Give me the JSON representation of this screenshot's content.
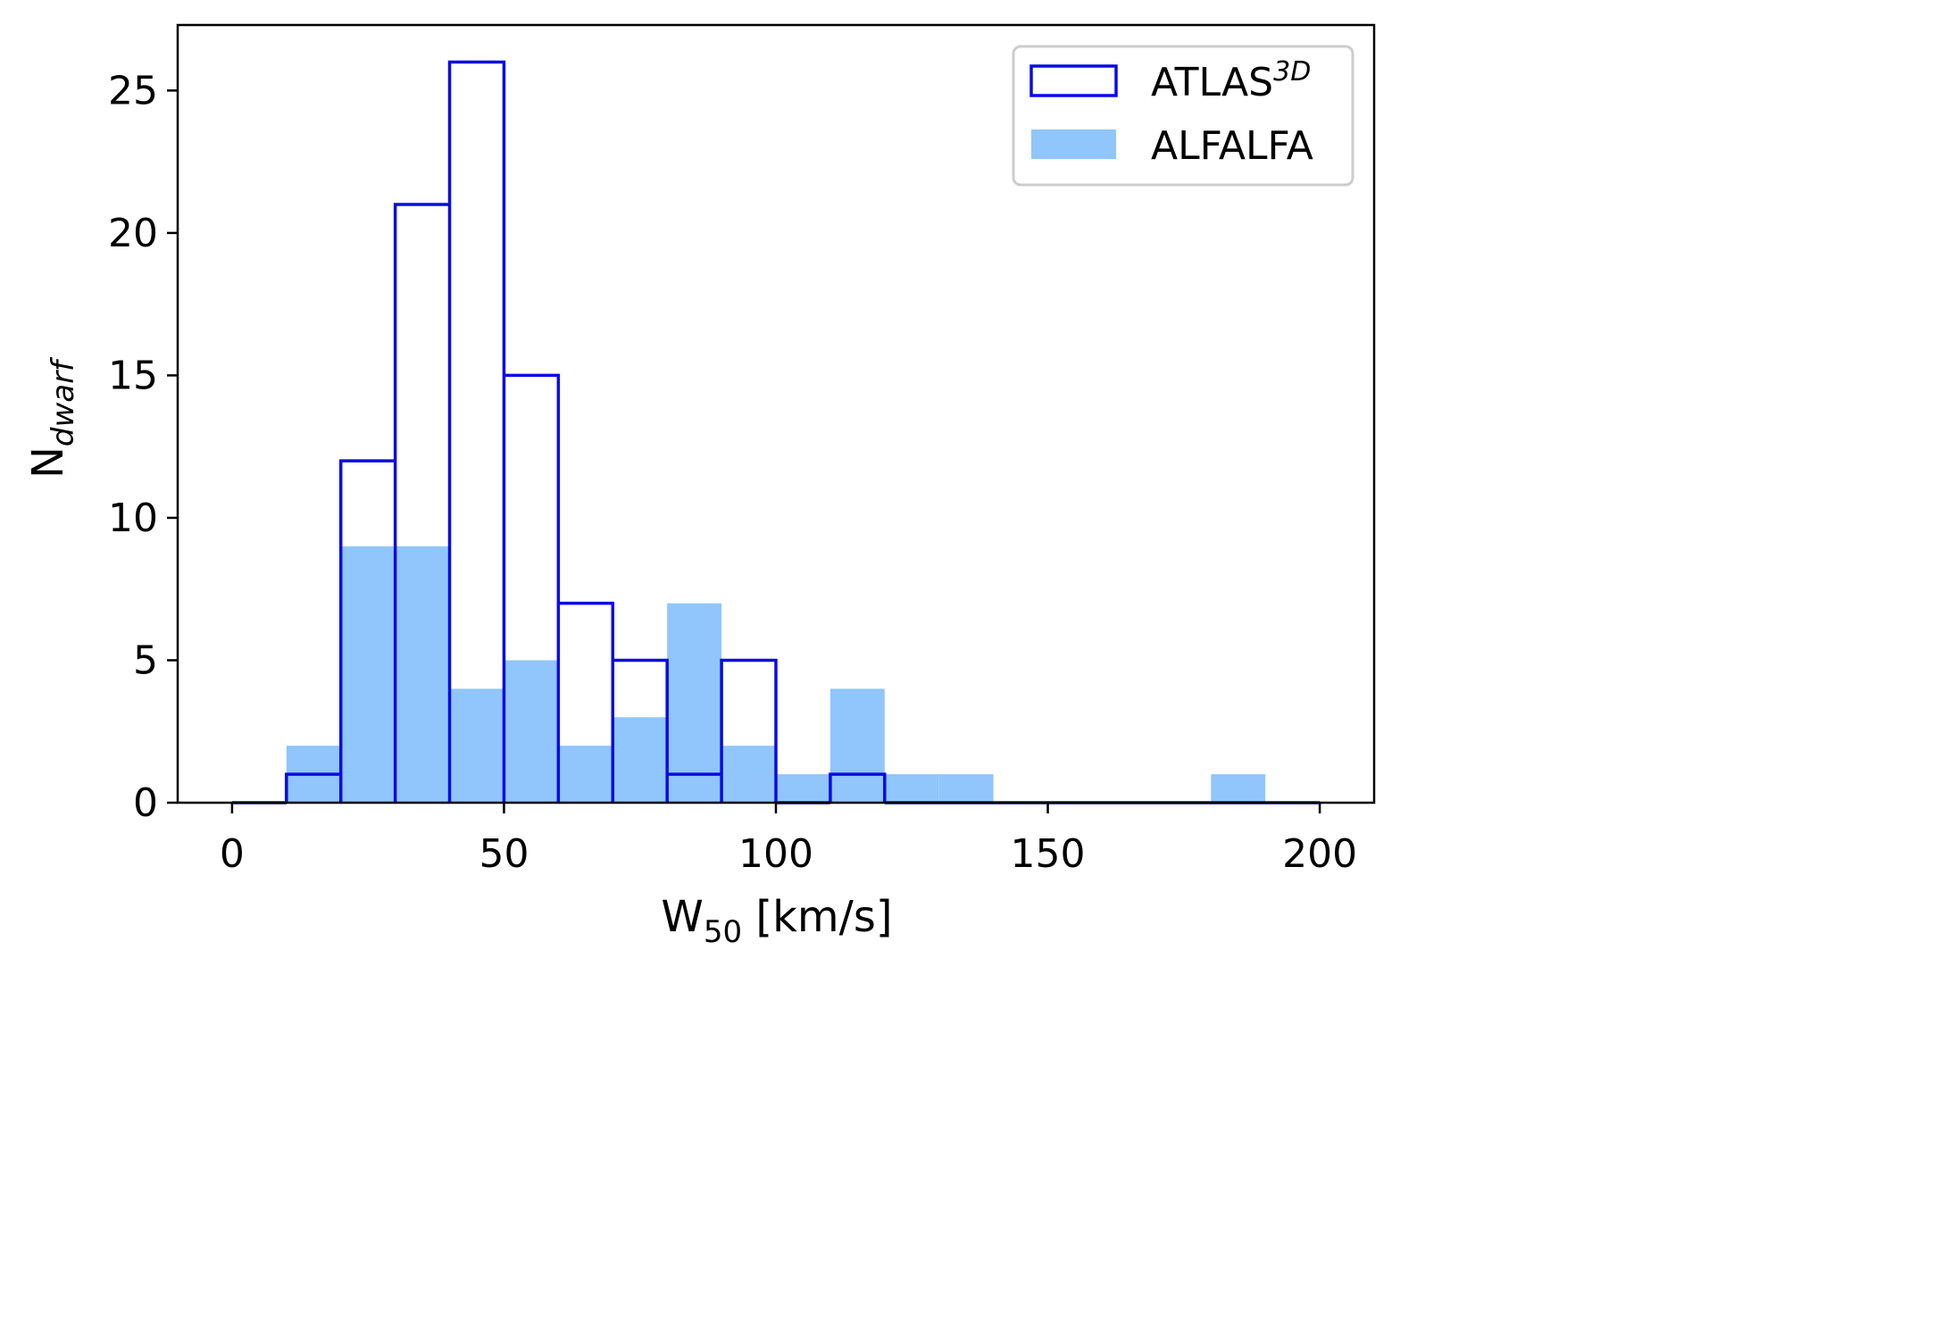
{
  "chart_data": {
    "type": "bar",
    "xlabel_main": "W",
    "xlabel_sub": "50",
    "xlabel_rest": " [km/s]",
    "ylabel_main": "N",
    "ylabel_sub": "dwarf",
    "xlim": [
      -10,
      210
    ],
    "ylim": [
      0,
      27.3
    ],
    "xticks": [
      0,
      50,
      100,
      150,
      200
    ],
    "yticks": [
      0,
      5,
      10,
      15,
      20,
      25
    ],
    "bin_edges": [
      0,
      10,
      20,
      30,
      40,
      50,
      60,
      70,
      80,
      90,
      100,
      110,
      120,
      130,
      140,
      150,
      160,
      170,
      180,
      190,
      200
    ],
    "legend_position": "top-right",
    "grid": false,
    "series": [
      {
        "name": "ATLAS",
        "name_sup": "3D",
        "style": "step",
        "color": "#0a0ae6",
        "values": [
          0,
          1,
          12,
          21,
          26,
          15,
          7,
          5,
          1,
          5,
          0,
          1,
          0,
          0,
          0,
          0,
          0,
          0,
          0,
          0
        ]
      },
      {
        "name": "ALFALFA",
        "style": "filled",
        "color": "#90c6fc",
        "values": [
          0,
          2,
          9,
          9,
          4,
          5,
          2,
          3,
          7,
          2,
          1,
          4,
          1,
          1,
          0,
          0,
          0,
          0,
          1,
          0
        ]
      }
    ]
  }
}
